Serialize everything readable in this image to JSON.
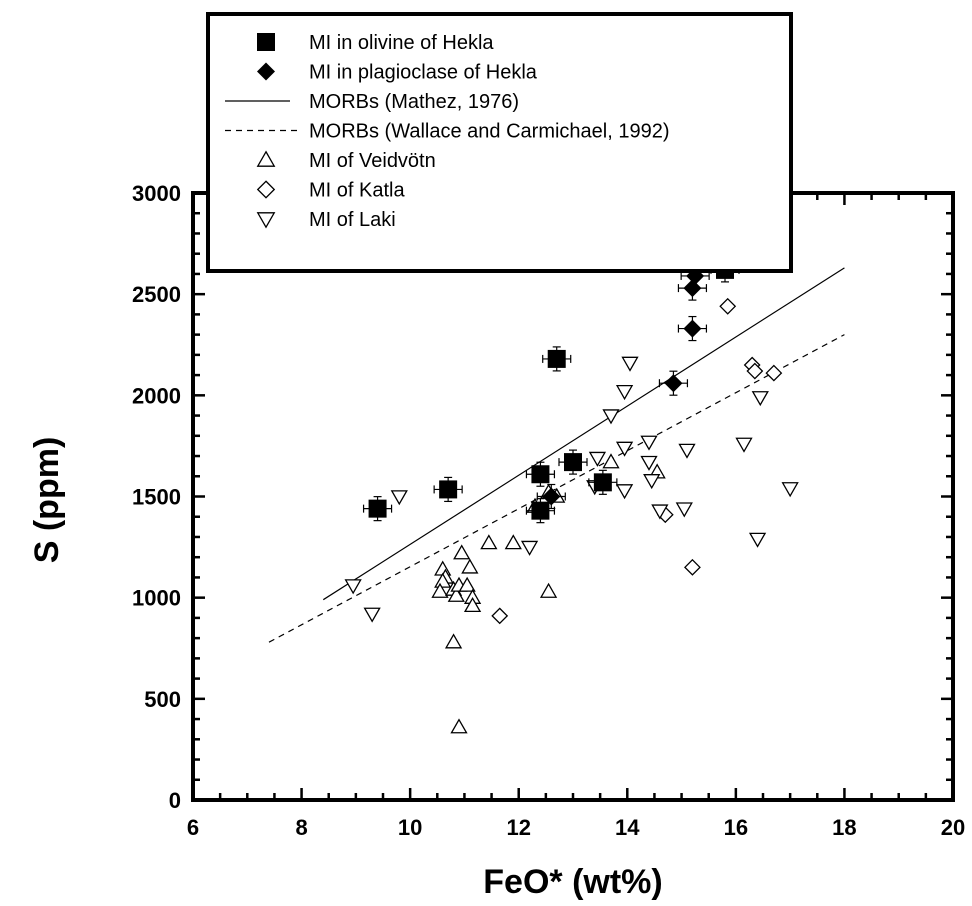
{
  "chart_data": {
    "type": "scatter",
    "xlabel": "FeO* (wt%)",
    "ylabel": "S (ppm)",
    "xlim": [
      6,
      20
    ],
    "ylim": [
      0,
      3000
    ],
    "x_ticks": [
      6,
      8,
      10,
      12,
      14,
      16,
      18,
      20
    ],
    "y_ticks": [
      0,
      500,
      1000,
      1500,
      2000,
      2500,
      3000
    ],
    "grid": false,
    "legend_position": "top",
    "series": [
      {
        "name": "MI in olivine of Hekla",
        "marker": "filled-square",
        "error_bars": true,
        "points": [
          {
            "x": 9.4,
            "y": 1440
          },
          {
            "x": 10.7,
            "y": 1535
          },
          {
            "x": 12.4,
            "y": 1610
          },
          {
            "x": 12.4,
            "y": 1430
          },
          {
            "x": 12.7,
            "y": 2180
          },
          {
            "x": 13.0,
            "y": 1670
          },
          {
            "x": 13.55,
            "y": 1570
          },
          {
            "x": 15.8,
            "y": 2620
          }
        ]
      },
      {
        "name": "MI in plagioclase of Hekla",
        "marker": "filled-diamond",
        "error_bars": true,
        "points": [
          {
            "x": 12.6,
            "y": 1500
          },
          {
            "x": 14.85,
            "y": 2060
          },
          {
            "x": 15.2,
            "y": 2330
          },
          {
            "x": 15.2,
            "y": 2530
          },
          {
            "x": 15.25,
            "y": 2590
          }
        ]
      },
      {
        "name": "MORBs (Mathez, 1976)",
        "marker": "solid-line",
        "line": {
          "x": [
            8.4,
            18.0
          ],
          "y": [
            990,
            2630
          ]
        }
      },
      {
        "name": "MORBs (Wallace and Carmichael, 1992)",
        "marker": "dashed-line",
        "line": {
          "x": [
            7.4,
            18.0
          ],
          "y": [
            780,
            2300
          ]
        }
      },
      {
        "name": "MI of Veidvötn",
        "marker": "open-triangle-up",
        "points": [
          {
            "x": 10.6,
            "y": 1140
          },
          {
            "x": 10.65,
            "y": 1100
          },
          {
            "x": 10.6,
            "y": 1080
          },
          {
            "x": 10.55,
            "y": 1030
          },
          {
            "x": 10.8,
            "y": 1040
          },
          {
            "x": 10.85,
            "y": 1010
          },
          {
            "x": 10.9,
            "y": 1060
          },
          {
            "x": 10.95,
            "y": 1220
          },
          {
            "x": 11.05,
            "y": 1060
          },
          {
            "x": 11.1,
            "y": 1150
          },
          {
            "x": 11.15,
            "y": 1000
          },
          {
            "x": 11.15,
            "y": 960
          },
          {
            "x": 10.8,
            "y": 780
          },
          {
            "x": 10.9,
            "y": 360
          },
          {
            "x": 11.45,
            "y": 1270
          },
          {
            "x": 11.9,
            "y": 1270
          },
          {
            "x": 12.55,
            "y": 1030
          },
          {
            "x": 12.3,
            "y": 1450
          },
          {
            "x": 12.55,
            "y": 1520
          },
          {
            "x": 12.7,
            "y": 1500
          },
          {
            "x": 13.7,
            "y": 1670
          },
          {
            "x": 14.55,
            "y": 1620
          }
        ]
      },
      {
        "name": "MI of Katla",
        "marker": "open-diamond",
        "points": [
          {
            "x": 11.65,
            "y": 910
          },
          {
            "x": 14.7,
            "y": 1410
          },
          {
            "x": 15.2,
            "y": 1150
          },
          {
            "x": 15.85,
            "y": 2440
          },
          {
            "x": 16.3,
            "y": 2150
          },
          {
            "x": 16.35,
            "y": 2120
          },
          {
            "x": 16.7,
            "y": 2110
          }
        ]
      },
      {
        "name": "MI of Laki",
        "marker": "open-triangle-down",
        "points": [
          {
            "x": 8.95,
            "y": 1060
          },
          {
            "x": 9.3,
            "y": 920
          },
          {
            "x": 9.8,
            "y": 1500
          },
          {
            "x": 12.2,
            "y": 1250
          },
          {
            "x": 13.4,
            "y": 1550
          },
          {
            "x": 13.45,
            "y": 1690
          },
          {
            "x": 13.7,
            "y": 1900
          },
          {
            "x": 13.95,
            "y": 1740
          },
          {
            "x": 13.95,
            "y": 2020
          },
          {
            "x": 14.05,
            "y": 2160
          },
          {
            "x": 13.95,
            "y": 1530
          },
          {
            "x": 14.4,
            "y": 1770
          },
          {
            "x": 14.4,
            "y": 1670
          },
          {
            "x": 14.45,
            "y": 1580
          },
          {
            "x": 14.6,
            "y": 1430
          },
          {
            "x": 15.05,
            "y": 1440
          },
          {
            "x": 15.1,
            "y": 1730
          },
          {
            "x": 16.15,
            "y": 1760
          },
          {
            "x": 16.45,
            "y": 1990
          },
          {
            "x": 16.4,
            "y": 1290
          },
          {
            "x": 17.0,
            "y": 1540
          }
        ]
      }
    ]
  }
}
